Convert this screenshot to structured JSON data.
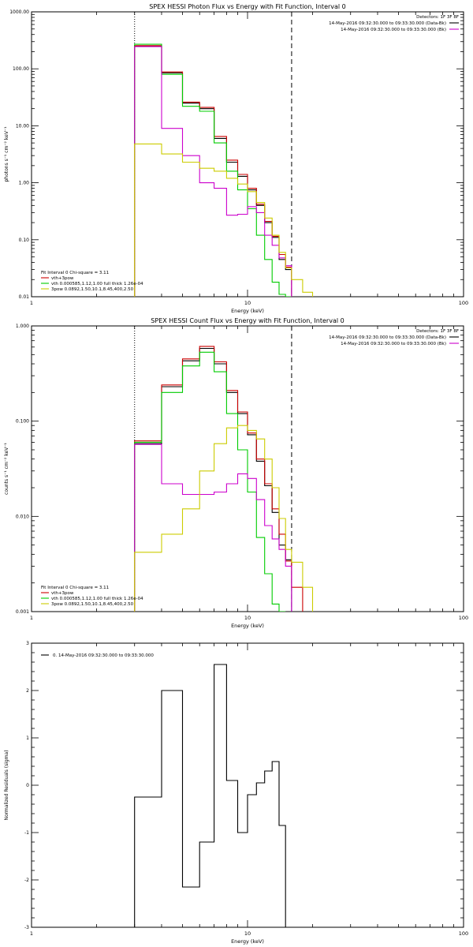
{
  "chart_data": [
    {
      "type": "line",
      "title": "SPEX HESSI Photon Flux vs Energy with Fit Function, Interval 0",
      "xlabel": "Energy (keV)",
      "ylabel": "photons s⁻¹ cm⁻² keV⁻¹",
      "xscale": "log",
      "yscale": "log",
      "xlim": [
        1,
        100
      ],
      "ylim": [
        0.01,
        1000
      ],
      "xticks": [
        "1",
        "10",
        "100"
      ],
      "yticks": [
        "0.01",
        "0.10",
        "1.00",
        "10.00",
        "100.00",
        "1000.00"
      ],
      "vlines": [
        {
          "x": 3.0,
          "style": "dotted"
        },
        {
          "x": 16.0,
          "style": "dashed"
        }
      ],
      "legend_topright": {
        "header": "Detectors: 1F 3F 8F",
        "items": [
          {
            "text": "14-May-2016 09:32:30.000 to 09:33:30.000 (Data-Bk)",
            "color": "#000000"
          },
          {
            "text": "14-May-2016 09:32:30.000 to 09:33:30.000 (Bk)",
            "color": "#cc00cc"
          }
        ]
      },
      "legend_bottomleft": {
        "header": "Fit Interval 0   Chi-square = 3.11",
        "items": [
          {
            "text": "vth+3pow",
            "color": "#cc0000"
          },
          {
            "text": "vth 0.000585,1.12,1.00  full thick 1.26e-04",
            "color": "#00cc00"
          },
          {
            "text": "3pow 0.0892,1.50,10.1,8.45,400,2.50",
            "color": "#cccc00"
          }
        ]
      },
      "edges": [
        3.0,
        4.0,
        5.0,
        6.0,
        7.0,
        8.0,
        9.0,
        10.0,
        11.0,
        12.0,
        13.0,
        14.0,
        15.0,
        16.0,
        18.0,
        20.0
      ],
      "series": [
        {
          "color": "#000000",
          "values": [
            250,
            85,
            25,
            20,
            6,
            2.3,
            1.3,
            0.75,
            0.4,
            0.2,
            0.11,
            0.045,
            0.03,
            null,
            null
          ]
        },
        {
          "color": "#cc0000",
          "values": [
            255,
            88,
            26,
            21,
            6.5,
            2.5,
            1.4,
            0.8,
            0.42,
            0.21,
            0.115,
            0.055,
            0.033,
            null,
            null
          ]
        },
        {
          "color": "#00cc00",
          "values": [
            270,
            80,
            22,
            18,
            5,
            1.6,
            0.75,
            0.35,
            0.12,
            0.045,
            0.018,
            0.011,
            0.01,
            null,
            null
          ]
        },
        {
          "color": "#cc00cc",
          "values": [
            245,
            9,
            3,
            1,
            0.8,
            0.27,
            0.28,
            0.38,
            0.3,
            0.12,
            0.08,
            0.048,
            0.035,
            null,
            null
          ]
        },
        {
          "color": "#cccc00",
          "values": [
            4.8,
            3.2,
            2.3,
            1.8,
            1.6,
            1.2,
            0.95,
            0.7,
            0.45,
            0.24,
            0.12,
            0.06,
            0.032,
            0.02,
            0.012
          ]
        }
      ]
    },
    {
      "type": "line",
      "title": "SPEX HESSI Count Flux vs Energy with Fit Function, Interval 0",
      "xlabel": "Energy (keV)",
      "ylabel": "counts s⁻¹ cm⁻² keV⁻¹",
      "xscale": "log",
      "yscale": "log",
      "xlim": [
        1,
        100
      ],
      "ylim": [
        0.001,
        1
      ],
      "xticks": [
        "1",
        "10",
        "100"
      ],
      "yticks": [
        "0.001",
        "0.010",
        "0.100",
        "1.000"
      ],
      "vlines": [
        {
          "x": 3.0,
          "style": "dotted"
        },
        {
          "x": 16.0,
          "style": "dashed"
        }
      ],
      "legend_topright": {
        "header": "Detectors: 1F 3F 8F",
        "items": [
          {
            "text": "14-May-2016 09:32:30.000 to 09:33:30.000 (Data-Bk)",
            "color": "#000000"
          },
          {
            "text": "14-May-2016 09:32:30.000 to 09:33:30.000 (Bk)",
            "color": "#cc00cc"
          }
        ]
      },
      "legend_bottomleft": {
        "header": "Fit Interval 0   Chi-square = 3.11",
        "items": [
          {
            "text": "vth+3pow",
            "color": "#cc0000"
          },
          {
            "text": "vth 0.000585,1.12,1.00  full thick 1.26e-04",
            "color": "#00cc00"
          },
          {
            "text": "3pow 0.0892,1.50,10.1,8.45,400,2.50",
            "color": "#cccc00"
          }
        ]
      },
      "edges": [
        3.0,
        4.0,
        5.0,
        6.0,
        7.0,
        8.0,
        9.0,
        10.0,
        11.0,
        12.0,
        13.0,
        14.0,
        15.0,
        16.0,
        18.0,
        20.0
      ],
      "series": [
        {
          "color": "#000000",
          "values": [
            0.058,
            0.23,
            0.43,
            0.58,
            0.4,
            0.2,
            0.12,
            0.072,
            0.038,
            0.021,
            0.011,
            0.005,
            0.0035,
            null,
            null
          ]
        },
        {
          "color": "#cc0000",
          "values": [
            0.062,
            0.24,
            0.45,
            0.61,
            0.42,
            0.21,
            0.125,
            0.075,
            0.04,
            0.022,
            0.012,
            0.0065,
            0.0034,
            0.0018,
            null
          ]
        },
        {
          "color": "#00cc00",
          "values": [
            0.06,
            0.2,
            0.38,
            0.53,
            0.33,
            0.12,
            0.05,
            0.018,
            0.006,
            0.0025,
            0.0012,
            0.001,
            null,
            null,
            null
          ]
        },
        {
          "color": "#cc00cc",
          "values": [
            0.057,
            0.022,
            0.017,
            0.017,
            0.018,
            0.022,
            0.028,
            0.025,
            0.015,
            0.008,
            0.0058,
            0.0045,
            0.003,
            null,
            null
          ]
        },
        {
          "color": "#cccc00",
          "values": [
            0.0042,
            0.0065,
            0.012,
            0.03,
            0.058,
            0.085,
            0.09,
            0.08,
            0.065,
            0.04,
            0.02,
            0.0095,
            0.0045,
            0.0033,
            0.0018
          ]
        }
      ]
    },
    {
      "type": "line",
      "title": "",
      "xlabel": "Energy (keV)",
      "ylabel": "Normalized Residuals (sigma)",
      "xscale": "log",
      "yscale": "linear",
      "xlim": [
        1,
        100
      ],
      "ylim": [
        -3,
        3
      ],
      "xticks": [
        "1",
        "10",
        "100"
      ],
      "yticks": [
        "-3",
        "-2",
        "-1",
        "0",
        "1",
        "2",
        "3"
      ],
      "legend_topleft": {
        "items": [
          {
            "text": "0. 14-May-2016 09:32:30.000 to 09:33:30.000",
            "color": "#000000"
          }
        ]
      },
      "edges": [
        3.0,
        4.0,
        5.0,
        6.0,
        7.0,
        8.0,
        9.0,
        10.0,
        11.0,
        12.0,
        13.0,
        14.0,
        15.0,
        16.0
      ],
      "series": [
        {
          "color": "#000000",
          "values": [
            -0.25,
            2.0,
            -2.15,
            -1.2,
            2.55,
            0.1,
            -1.0,
            -0.2,
            0.05,
            0.3,
            0.5,
            -0.85,
            null
          ]
        }
      ]
    }
  ]
}
